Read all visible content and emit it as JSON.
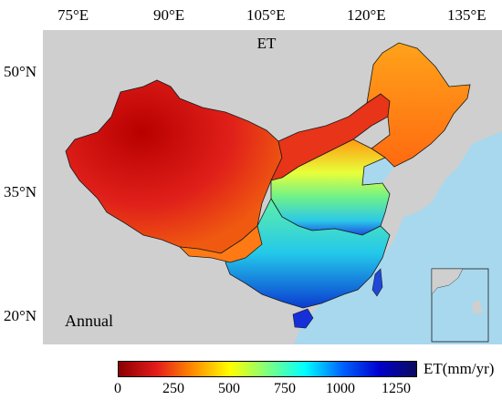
{
  "map": {
    "title": "ET",
    "panel_label": "Annual",
    "lon_labels": [
      "75°E",
      "90°E",
      "105°E",
      "120°E",
      "135°E"
    ],
    "lat_labels": [
      "50°N",
      "35°N",
      "20°N"
    ]
  },
  "colorbar": {
    "unit_label": "ET(mm/yr)",
    "tick_labels": [
      "0",
      "250",
      "500",
      "750",
      "1000",
      "1250"
    ],
    "range": [
      0,
      1350
    ],
    "colors": [
      "#8b0000",
      "#e31a1c",
      "#ff8c00",
      "#ffff00",
      "#7fff7f",
      "#00ffff",
      "#0064ff",
      "#0000cd",
      "#0b0b5e"
    ]
  },
  "colors": {
    "ocean": "#a8d8ee",
    "land_background": "#cfcfcf",
    "border": "#1a1a1a"
  }
}
